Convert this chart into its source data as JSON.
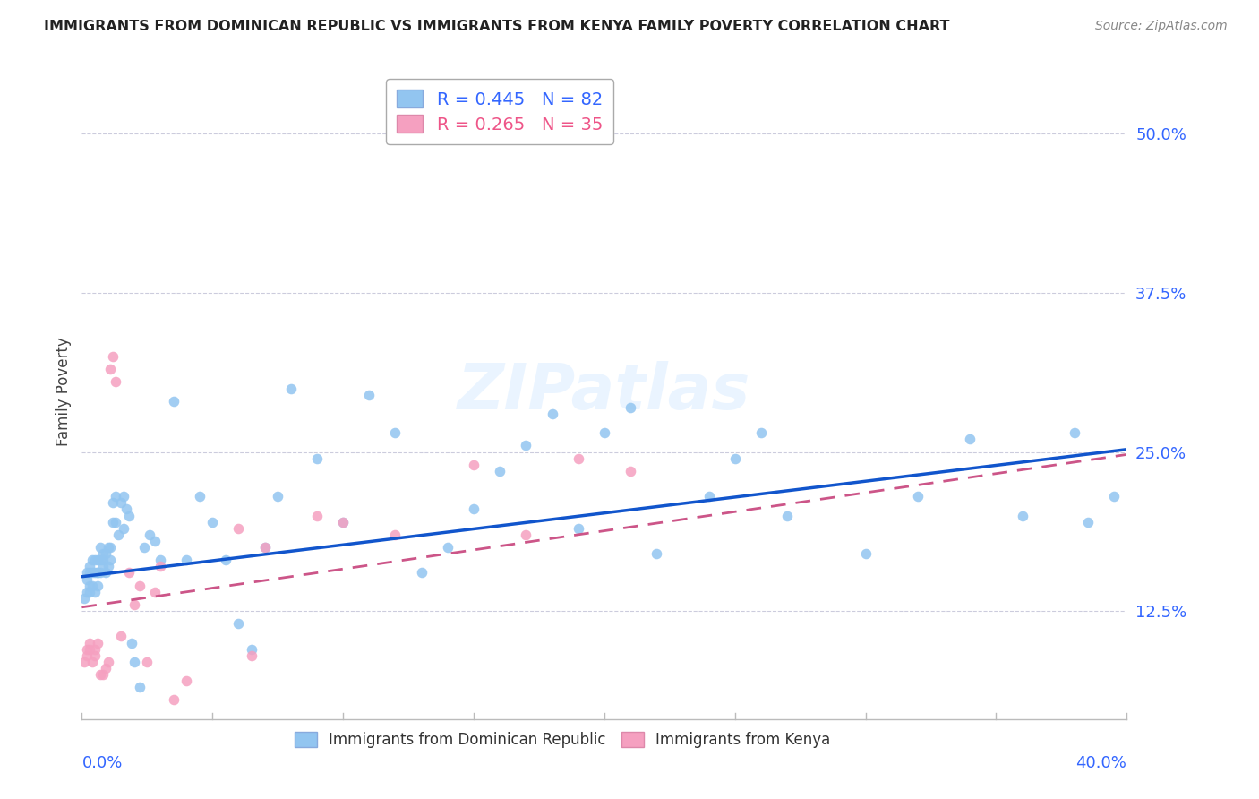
{
  "title": "IMMIGRANTS FROM DOMINICAN REPUBLIC VS IMMIGRANTS FROM KENYA FAMILY POVERTY CORRELATION CHART",
  "source": "Source: ZipAtlas.com",
  "ylabel": "Family Poverty",
  "ytick_labels": [
    "12.5%",
    "25.0%",
    "37.5%",
    "50.0%"
  ],
  "ytick_values": [
    0.125,
    0.25,
    0.375,
    0.5
  ],
  "xlim": [
    0.0,
    0.4
  ],
  "ylim": [
    0.04,
    0.555
  ],
  "color_blue": "#92C5F0",
  "color_pink": "#F5A0C0",
  "trendline_blue": "#1155CC",
  "trendline_pink": "#CC5588",
  "background_color": "#FFFFFF",
  "dr_R": "0.445",
  "dr_N": "82",
  "kenya_R": "0.265",
  "kenya_N": "35",
  "dr_points_x": [
    0.001,
    0.002,
    0.002,
    0.002,
    0.003,
    0.003,
    0.003,
    0.003,
    0.004,
    0.004,
    0.004,
    0.005,
    0.005,
    0.005,
    0.006,
    0.006,
    0.006,
    0.006,
    0.007,
    0.007,
    0.007,
    0.008,
    0.008,
    0.008,
    0.009,
    0.009,
    0.01,
    0.01,
    0.011,
    0.011,
    0.012,
    0.012,
    0.013,
    0.013,
    0.014,
    0.015,
    0.016,
    0.016,
    0.017,
    0.018,
    0.019,
    0.02,
    0.022,
    0.024,
    0.026,
    0.028,
    0.03,
    0.035,
    0.04,
    0.045,
    0.05,
    0.055,
    0.06,
    0.065,
    0.07,
    0.075,
    0.08,
    0.09,
    0.1,
    0.11,
    0.12,
    0.13,
    0.14,
    0.15,
    0.16,
    0.17,
    0.18,
    0.19,
    0.2,
    0.21,
    0.22,
    0.24,
    0.25,
    0.26,
    0.27,
    0.3,
    0.32,
    0.34,
    0.36,
    0.38,
    0.385,
    0.395
  ],
  "dr_points_y": [
    0.135,
    0.14,
    0.15,
    0.155,
    0.14,
    0.145,
    0.155,
    0.16,
    0.145,
    0.155,
    0.165,
    0.14,
    0.155,
    0.165,
    0.145,
    0.155,
    0.165,
    0.155,
    0.155,
    0.165,
    0.175,
    0.16,
    0.165,
    0.17,
    0.155,
    0.17,
    0.16,
    0.175,
    0.165,
    0.175,
    0.195,
    0.21,
    0.195,
    0.215,
    0.185,
    0.21,
    0.19,
    0.215,
    0.205,
    0.2,
    0.1,
    0.085,
    0.065,
    0.175,
    0.185,
    0.18,
    0.165,
    0.29,
    0.165,
    0.215,
    0.195,
    0.165,
    0.115,
    0.095,
    0.175,
    0.215,
    0.3,
    0.245,
    0.195,
    0.295,
    0.265,
    0.155,
    0.175,
    0.205,
    0.235,
    0.255,
    0.28,
    0.19,
    0.265,
    0.285,
    0.17,
    0.215,
    0.245,
    0.265,
    0.2,
    0.17,
    0.215,
    0.26,
    0.2,
    0.265,
    0.195,
    0.215
  ],
  "kenya_points_x": [
    0.001,
    0.002,
    0.002,
    0.003,
    0.003,
    0.004,
    0.005,
    0.005,
    0.006,
    0.007,
    0.008,
    0.009,
    0.01,
    0.011,
    0.012,
    0.013,
    0.015,
    0.018,
    0.02,
    0.022,
    0.025,
    0.028,
    0.03,
    0.035,
    0.04,
    0.06,
    0.065,
    0.07,
    0.09,
    0.1,
    0.12,
    0.15,
    0.17,
    0.19,
    0.21
  ],
  "kenya_points_y": [
    0.085,
    0.09,
    0.095,
    0.1,
    0.095,
    0.085,
    0.09,
    0.095,
    0.1,
    0.075,
    0.075,
    0.08,
    0.085,
    0.315,
    0.325,
    0.305,
    0.105,
    0.155,
    0.13,
    0.145,
    0.085,
    0.14,
    0.16,
    0.055,
    0.07,
    0.19,
    0.09,
    0.175,
    0.2,
    0.195,
    0.185,
    0.24,
    0.185,
    0.245,
    0.235
  ],
  "dr_trend_x": [
    0.0,
    0.4
  ],
  "dr_trend_y": [
    0.152,
    0.252
  ],
  "kenya_trend_x": [
    0.0,
    0.4
  ],
  "kenya_trend_y": [
    0.128,
    0.248
  ]
}
